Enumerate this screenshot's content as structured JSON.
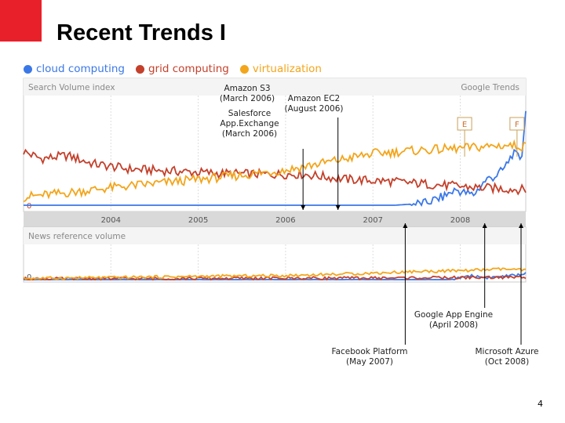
{
  "slide": {
    "title": "Recent Trends I",
    "page_number": "4"
  },
  "colors": {
    "brand_red": "#e8202a",
    "cloud": "#3b78e7",
    "grid": "#c4402b",
    "virt": "#f3a51b",
    "panel_bg": "#f4f4f4",
    "axis_bar": "#d9d9d9"
  },
  "legend": [
    {
      "label": "cloud computing",
      "color": "#3b78e7"
    },
    {
      "label": "grid computing",
      "color": "#c4402b"
    },
    {
      "label": "virtualization",
      "color": "#f3a51b"
    }
  ],
  "chart_data": {
    "type": "line",
    "source_label": "Google Trends",
    "panels": [
      {
        "title": "Search Volume index",
        "zero_label": "0",
        "x_start": 2003.0,
        "x_end": 2008.75,
        "ylim": [
          0,
          10
        ],
        "series": [
          {
            "name": "cloud computing",
            "x": [
              2003.0,
              2007.25,
              2007.6,
              2007.8,
              2007.95,
              2008.05,
              2008.15,
              2008.3,
              2008.4,
              2008.5,
              2008.6,
              2008.7,
              2008.75
            ],
            "values": [
              0.0,
              0.0,
              0.2,
              0.8,
              1.5,
              1.2,
              1.0,
              2.5,
              2.8,
              3.5,
              5.0,
              4.5,
              9.0
            ]
          },
          {
            "name": "grid computing",
            "x": [
              2003.0,
              2003.2,
              2003.5,
              2003.8,
              2004.2,
              2004.7,
              2005.2,
              2005.7,
              2006.2,
              2006.7,
              2007.2,
              2007.7,
              2008.2,
              2008.75
            ],
            "values": [
              5.2,
              4.5,
              4.8,
              4.0,
              3.5,
              3.3,
              3.1,
              3.0,
              3.0,
              2.5,
              2.3,
              2.0,
              1.7,
              1.5
            ]
          },
          {
            "name": "virtualization",
            "x": [
              2003.0,
              2003.5,
              2004.0,
              2004.5,
              2005.0,
              2005.5,
              2006.0,
              2006.5,
              2007.0,
              2007.5,
              2008.0,
              2008.5,
              2008.75
            ],
            "values": [
              0.8,
              1.2,
              1.7,
              2.1,
              2.5,
              2.9,
              3.4,
              4.2,
              5.0,
              5.3,
              5.5,
              5.8,
              5.7
            ]
          }
        ],
        "markers": [
          {
            "label": "E",
            "x": 2008.05
          },
          {
            "label": "F",
            "x": 2008.65
          }
        ]
      },
      {
        "title": "News reference volume",
        "zero_label": "0",
        "x_start": 2003.0,
        "x_end": 2008.75,
        "ylim": [
          0,
          10
        ],
        "series": [
          {
            "name": "cloud computing",
            "x": [
              2003.0,
              2007.9,
              2008.1,
              2008.3,
              2008.5,
              2008.7,
              2008.75
            ],
            "values": [
              0.0,
              0.0,
              1.0,
              0.5,
              0.8,
              1.2,
              1.8
            ]
          },
          {
            "name": "grid computing",
            "x": [
              2003.0,
              2005.0,
              2007.0,
              2008.0,
              2008.75
            ],
            "values": [
              0.2,
              0.3,
              0.4,
              0.5,
              0.6
            ]
          },
          {
            "name": "virtualization",
            "x": [
              2003.0,
              2004.0,
              2005.0,
              2006.0,
              2007.0,
              2007.5,
              2008.0,
              2008.5,
              2008.75
            ],
            "values": [
              0.3,
              0.5,
              0.8,
              1.0,
              1.6,
              2.0,
              2.2,
              2.6,
              2.3
            ]
          }
        ]
      }
    ],
    "x_ticks": [
      "2004",
      "2005",
      "2006",
      "2007",
      "2008"
    ],
    "x_tick_values": [
      2004,
      2005,
      2006,
      2007,
      2008
    ],
    "annotations": [
      {
        "lines": [
          "Amazon S3",
          "(March 2006)"
        ],
        "x": 2006.2
      },
      {
        "lines": [
          "Salesforce",
          "App.Exchange",
          "(March 2006)"
        ],
        "x": 2006.2
      },
      {
        "lines": [
          "Amazon EC2",
          "(August 2006)"
        ],
        "x": 2006.6
      },
      {
        "lines": [
          "Facebook Platform",
          "(May 2007)"
        ],
        "x": 2007.37
      },
      {
        "lines": [
          "Google App Engine",
          "(April 2008)"
        ],
        "x": 2008.28
      },
      {
        "lines": [
          "Microsoft Azure",
          "(Oct 2008)"
        ],
        "x": 2008.78
      }
    ]
  }
}
